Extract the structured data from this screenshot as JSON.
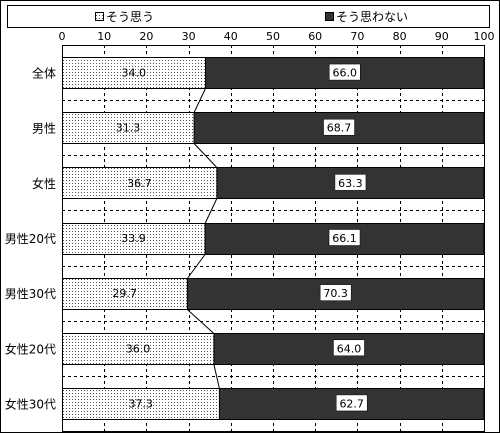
{
  "chart_data": {
    "type": "bar",
    "orientation": "horizontal",
    "stacked": "percent",
    "categories": [
      "全体",
      "男性",
      "女性",
      "男性20代",
      "男性30代",
      "女性20代",
      "女性30代"
    ],
    "series": [
      {
        "name": "そう思う",
        "values": [
          34.0,
          31.3,
          36.7,
          33.9,
          29.7,
          36.0,
          37.3
        ],
        "labels": [
          "34.0",
          "31.3",
          "36.7",
          "33.9",
          "29.7",
          "36.0",
          "37.3"
        ],
        "color": "#ffffff",
        "pattern": "dots"
      },
      {
        "name": "そう思わない",
        "values": [
          66.0,
          68.7,
          63.3,
          66.1,
          70.3,
          64.0,
          62.7
        ],
        "labels": [
          "66.0",
          "68.7",
          "63.3",
          "66.1",
          "70.3",
          "64.0",
          "62.7"
        ],
        "color": "#333333"
      }
    ],
    "xticks": [
      "0",
      "10",
      "20",
      "30",
      "40",
      "50",
      "60",
      "70",
      "80",
      "90",
      "100"
    ],
    "xlim": [
      0,
      100
    ],
    "legend": "top",
    "grid": "vertical dashed",
    "series_lines": true
  }
}
